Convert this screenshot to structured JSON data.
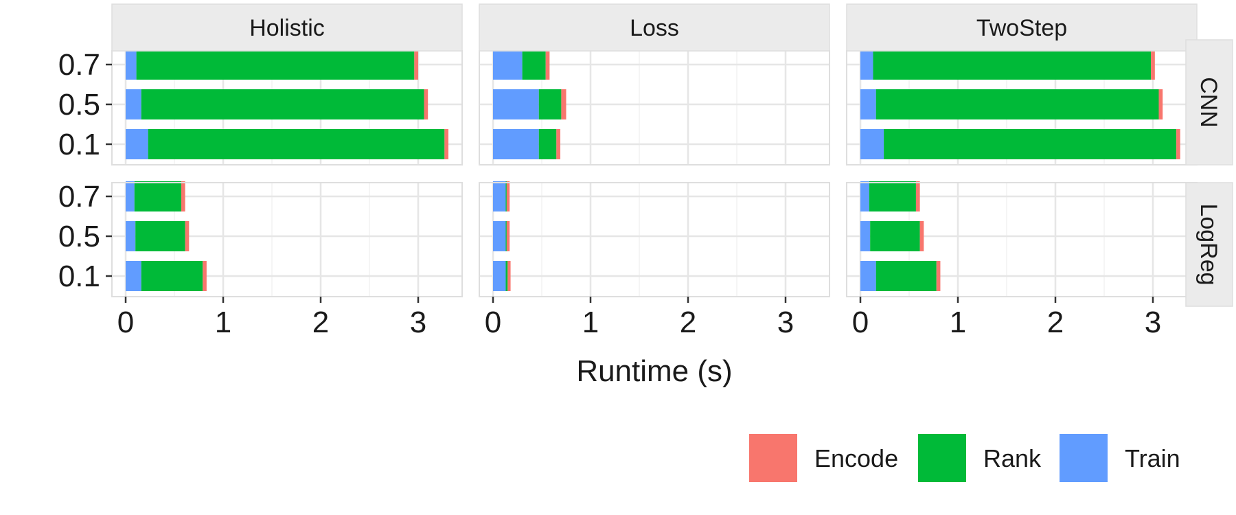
{
  "chart_data": {
    "type": "bar",
    "orientation": "horizontal",
    "stacked": true,
    "facet_columns": [
      "Holistic",
      "Loss",
      "TwoStep"
    ],
    "facet_rows": [
      "CNN",
      "LogReg"
    ],
    "categories": [
      "0.7",
      "0.5",
      "0.1"
    ],
    "stack_order": [
      "Train",
      "Rank",
      "Encode"
    ],
    "xlabel": "Runtime (s)",
    "ylabel": "",
    "xlim": [
      0,
      3.3
    ],
    "x_ticks": [
      "0",
      "1",
      "2",
      "3"
    ],
    "grid": true,
    "legend": {
      "position": "bottom-right",
      "entries": [
        {
          "name": "Encode",
          "color": "#F8766D"
        },
        {
          "name": "Rank",
          "color": "#00BA38"
        },
        {
          "name": "Train",
          "color": "#619CFF"
        }
      ]
    },
    "panels": {
      "CNN": {
        "Holistic": {
          "Train": [
            0.11,
            0.16,
            0.23
          ],
          "Rank": [
            2.85,
            2.9,
            3.04
          ],
          "Encode": [
            0.04,
            0.04,
            0.04
          ]
        },
        "Loss": {
          "Train": [
            0.3,
            0.47,
            0.47
          ],
          "Rank": [
            0.24,
            0.23,
            0.18
          ],
          "Encode": [
            0.04,
            0.05,
            0.04
          ]
        },
        "TwoStep": {
          "Train": [
            0.13,
            0.16,
            0.24
          ],
          "Rank": [
            2.85,
            2.9,
            3.0
          ],
          "Encode": [
            0.04,
            0.04,
            0.04
          ]
        }
      },
      "LogReg": {
        "Holistic": {
          "Train": [
            0.09,
            0.1,
            0.16
          ],
          "Rank": [
            0.48,
            0.51,
            0.63
          ],
          "Encode": [
            0.04,
            0.04,
            0.04
          ]
        },
        "Loss": {
          "Train": [
            0.13,
            0.13,
            0.13
          ],
          "Rank": [
            0.01,
            0.01,
            0.02
          ],
          "Encode": [
            0.03,
            0.03,
            0.03
          ]
        },
        "TwoStep": {
          "Train": [
            0.09,
            0.1,
            0.16
          ],
          "Rank": [
            0.48,
            0.51,
            0.62
          ],
          "Encode": [
            0.04,
            0.04,
            0.04
          ]
        }
      }
    }
  }
}
